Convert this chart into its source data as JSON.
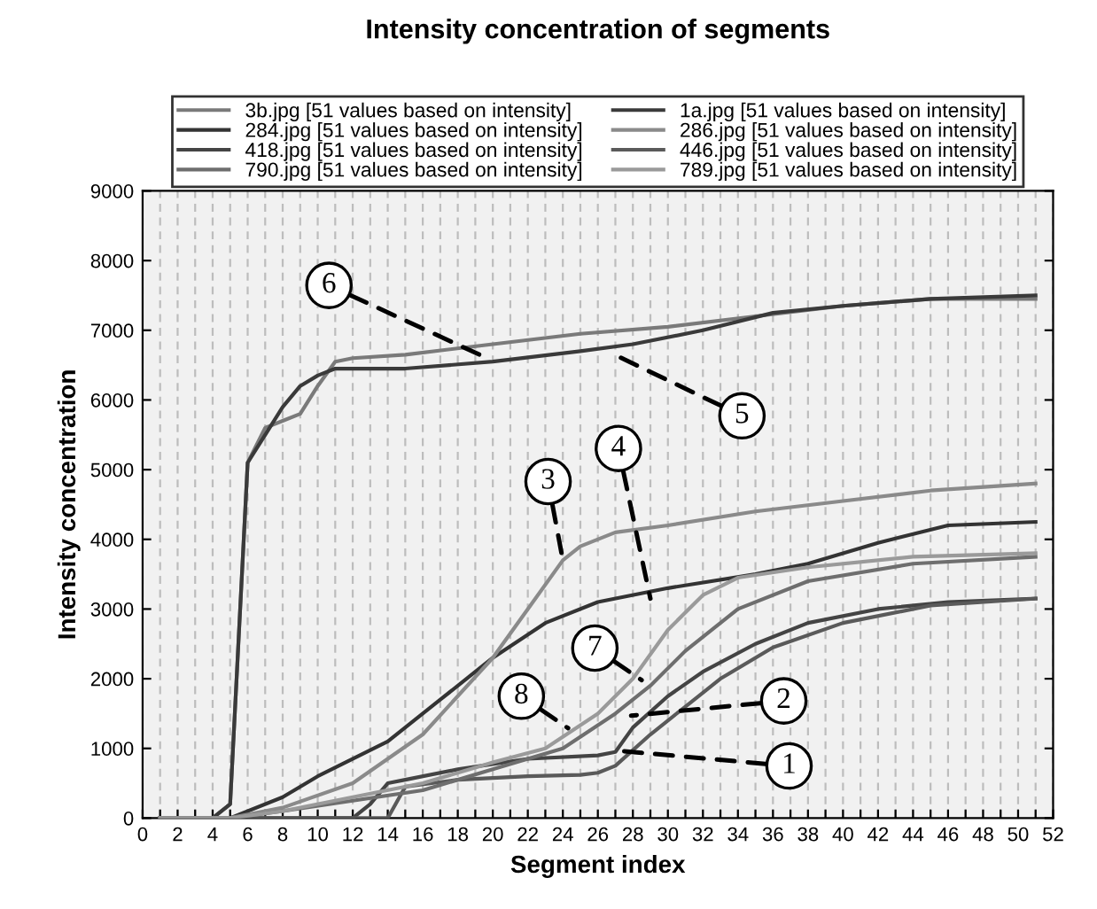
{
  "chart_data": {
    "type": "line",
    "title": "Intensity concentration of segments",
    "xlabel": "Segment index",
    "ylabel": "Intensity concentration",
    "xlim": [
      0,
      52
    ],
    "ylim": [
      0,
      9000
    ],
    "xticks": [
      0,
      {
        "value": 1,
        "label": null
      },
      2,
      {
        "value": 3,
        "label": null
      },
      4,
      {
        "value": 5,
        "label": null
      },
      6,
      {
        "value": 7,
        "label": null
      },
      8,
      {
        "value": 9,
        "label": null
      },
      10,
      {
        "value": 11,
        "label": null
      },
      12,
      {
        "value": 13,
        "label": null
      },
      14,
      {
        "value": 15,
        "label": null
      },
      16,
      {
        "value": 17,
        "label": null
      },
      18,
      {
        "value": 19,
        "label": null
      },
      20,
      {
        "value": 21,
        "label": null
      },
      22,
      {
        "value": 23,
        "label": null
      },
      24,
      {
        "value": 25,
        "label": null
      },
      26,
      {
        "value": 27,
        "label": null
      },
      28,
      {
        "value": 29,
        "label": null
      },
      30,
      {
        "value": 31,
        "label": null
      },
      32,
      {
        "value": 33,
        "label": null
      },
      34,
      {
        "value": 35,
        "label": null
      },
      36,
      {
        "value": 37,
        "label": null
      },
      38,
      {
        "value": 39,
        "label": null
      },
      40,
      {
        "value": 41,
        "label": null
      },
      42,
      {
        "value": 43,
        "label": null
      },
      44,
      {
        "value": 45,
        "label": null
      },
      46,
      {
        "value": 47,
        "label": null
      },
      48,
      {
        "value": 49,
        "label": null
      },
      50,
      {
        "value": 51,
        "label": null
      },
      52
    ],
    "yticks": [
      0,
      1000,
      2000,
      3000,
      4000,
      5000,
      6000,
      7000,
      8000,
      9000
    ],
    "grid": "x",
    "legend": "top",
    "marker": "none",
    "line_style": "solid",
    "series": [
      {
        "name": "3b.jpg [51 values based on intensity]",
        "color": "#7a7a7a",
        "x": [
          1,
          4,
          5,
          6,
          7,
          8,
          9,
          10,
          11,
          12,
          15,
          20,
          25,
          30,
          35,
          40,
          45,
          51
        ],
        "values": [
          0,
          0,
          200,
          5100,
          5600,
          5700,
          5800,
          6200,
          6550,
          6600,
          6650,
          6800,
          6950,
          7050,
          7200,
          7350,
          7450,
          7450
        ]
      },
      {
        "name": "1a.jpg [51 values based on intensity]",
        "color": "#3a3a3a",
        "x": [
          1,
          4,
          5,
          6,
          7,
          8,
          9,
          10,
          11,
          15,
          20,
          25,
          28,
          32,
          36,
          40,
          45,
          51
        ],
        "values": [
          0,
          0,
          200,
          5100,
          5500,
          5900,
          6200,
          6350,
          6450,
          6450,
          6550,
          6700,
          6800,
          7000,
          7250,
          7350,
          7450,
          7500
        ]
      },
      {
        "name": "284.jpg [51 values based on intensity]",
        "color": "#333333",
        "x": [
          1,
          5,
          8,
          10,
          14,
          17,
          20,
          23,
          26,
          30,
          35,
          38,
          42,
          46,
          51
        ],
        "values": [
          0,
          0,
          300,
          600,
          1100,
          1700,
          2300,
          2800,
          3100,
          3300,
          3500,
          3650,
          3950,
          4200,
          4250
        ]
      },
      {
        "name": "286.jpg [51 values based on intensity]",
        "color": "#8a8a8a",
        "x": [
          1,
          5,
          8,
          12,
          16,
          20,
          22,
          24,
          25,
          27,
          30,
          35,
          40,
          45,
          51
        ],
        "values": [
          0,
          0,
          150,
          500,
          1200,
          2300,
          3000,
          3700,
          3900,
          4100,
          4200,
          4400,
          4550,
          4700,
          4800
        ]
      },
      {
        "name": "418.jpg [51 values based on intensity]",
        "color": "#444444",
        "x": [
          1,
          12,
          13,
          14,
          15,
          18,
          22,
          26,
          27,
          28,
          30,
          32,
          35,
          38,
          42,
          46,
          51
        ],
        "values": [
          0,
          0,
          200,
          500,
          550,
          700,
          850,
          900,
          950,
          1300,
          1750,
          2100,
          2500,
          2800,
          3000,
          3100,
          3150
        ]
      },
      {
        "name": "446.jpg [51 values based on intensity]",
        "color": "#5a5a5a",
        "x": [
          1,
          14,
          15,
          18,
          22,
          25,
          26,
          27,
          29,
          31,
          33,
          36,
          40,
          45,
          51
        ],
        "values": [
          0,
          0,
          450,
          550,
          600,
          620,
          650,
          750,
          1200,
          1600,
          2000,
          2450,
          2800,
          3050,
          3150
        ]
      },
      {
        "name": "790.jpg [51 values based on intensity]",
        "color": "#6e6e6e",
        "x": [
          1,
          5,
          8,
          12,
          16,
          20,
          24,
          27,
          29,
          31,
          34,
          38,
          44,
          51
        ],
        "values": [
          0,
          0,
          100,
          250,
          400,
          700,
          1000,
          1500,
          1900,
          2400,
          3000,
          3400,
          3650,
          3750
        ]
      },
      {
        "name": "789.jpg [51 values based on intensity]",
        "color": "#9a9a9a",
        "x": [
          1,
          5,
          8,
          12,
          16,
          20,
          23,
          26,
          28,
          30,
          32,
          34,
          38,
          44,
          51
        ],
        "values": [
          0,
          0,
          100,
          300,
          500,
          800,
          1000,
          1500,
          2000,
          2700,
          3200,
          3450,
          3600,
          3750,
          3800
        ]
      }
    ],
    "annotations": [
      {
        "text": "1",
        "x": 27.5,
        "y": 960
      },
      {
        "text": "2",
        "x": 27.9,
        "y": 1470
      },
      {
        "text": "3",
        "x": 24,
        "y": 3700
      },
      {
        "text": "4",
        "x": 29,
        "y": 3150
      },
      {
        "text": "5",
        "x": 27.2,
        "y": 6620
      },
      {
        "text": "6",
        "x": 19.5,
        "y": 6620
      },
      {
        "text": "7",
        "x": 28.5,
        "y": 1980
      },
      {
        "text": "8",
        "x": 24.3,
        "y": 1290
      }
    ]
  }
}
